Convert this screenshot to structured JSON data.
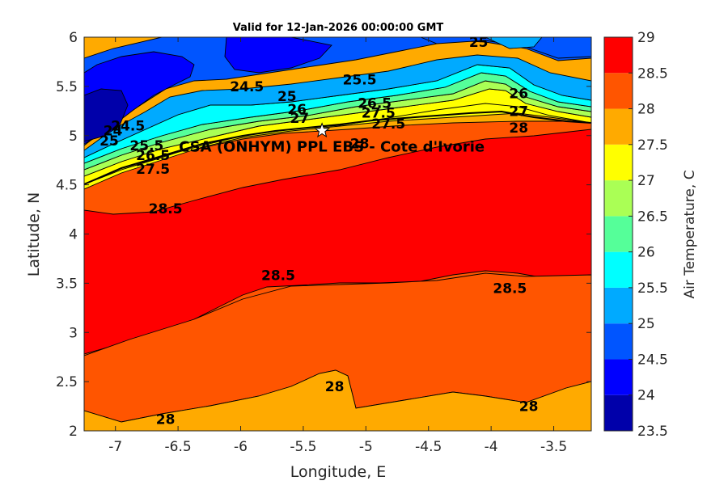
{
  "chart_data": {
    "type": "heatmap",
    "subtype": "filled-contour",
    "title": "Valid for 12-Jan-2026 00:00:00 GMT",
    "xlabel": "Longitude, E",
    "ylabel": "Latitude, N",
    "xlim": [
      -7.25,
      -3.2
    ],
    "ylim": [
      2,
      6
    ],
    "xticks": [
      -7,
      -6.5,
      -6,
      -5.5,
      -5,
      -4.5,
      -4,
      -3.5
    ],
    "xtick_labels": [
      "-7",
      "-6.5",
      "-6",
      "-5.5",
      "-5",
      "-4.5",
      "-4",
      "-3.5"
    ],
    "yticks": [
      2,
      2.5,
      3,
      3.5,
      4,
      4.5,
      5,
      5.5,
      6
    ],
    "ytick_labels": [
      "2",
      "2.5",
      "3",
      "3.5",
      "4",
      "4.5",
      "5",
      "5.5",
      "6"
    ],
    "colorbar": {
      "label": "Air Temperature, C",
      "ticks": [
        23.5,
        24,
        24.5,
        25,
        25.5,
        26,
        26.5,
        27,
        27.5,
        28,
        28.5,
        29
      ],
      "tick_labels": [
        "23.5",
        "24",
        "24.5",
        "25",
        "25.5",
        "26",
        "26.5",
        "27",
        "27.5",
        "28",
        "28.5",
        "29"
      ],
      "colors": [
        "#0000aa",
        "#0000ff",
        "#0055ff",
        "#00aaff",
        "#00ffff",
        "#55ff99",
        "#aaff55",
        "#ffff00",
        "#ffaa00",
        "#ff5500",
        "#ff0000",
        "#aa0000"
      ]
    },
    "contour_labels": [
      {
        "text": "25",
        "lon": -4.1,
        "lat": 5.95
      },
      {
        "text": "25.5",
        "lon": -5.05,
        "lat": 5.57
      },
      {
        "text": "24.5",
        "lon": -5.95,
        "lat": 5.5
      },
      {
        "text": "25",
        "lon": -5.63,
        "lat": 5.4
      },
      {
        "text": "26",
        "lon": -3.78,
        "lat": 5.43
      },
      {
        "text": "26.5",
        "lon": -4.93,
        "lat": 5.33
      },
      {
        "text": "26",
        "lon": -5.55,
        "lat": 5.27
      },
      {
        "text": "27.5",
        "lon": -4.9,
        "lat": 5.23
      },
      {
        "text": "27",
        "lon": -3.78,
        "lat": 5.25
      },
      {
        "text": "27",
        "lon": -5.53,
        "lat": 5.18
      },
      {
        "text": "27.5",
        "lon": -4.82,
        "lat": 5.12
      },
      {
        "text": "28",
        "lon": -3.78,
        "lat": 5.08
      },
      {
        "text": "24",
        "lon": -7.02,
        "lat": 5.05
      },
      {
        "text": "24.5",
        "lon": -6.9,
        "lat": 5.1
      },
      {
        "text": "25",
        "lon": -7.05,
        "lat": 4.95
      },
      {
        "text": "25.5",
        "lon": -6.75,
        "lat": 4.9
      },
      {
        "text": "26.5",
        "lon": -6.7,
        "lat": 4.8
      },
      {
        "text": "27.5",
        "lon": -6.7,
        "lat": 4.66
      },
      {
        "text": "28",
        "lon": -5.05,
        "lat": 4.92
      },
      {
        "text": "28.5",
        "lon": -6.6,
        "lat": 4.26
      },
      {
        "text": "28.5",
        "lon": -5.7,
        "lat": 3.58
      },
      {
        "text": "28.5",
        "lon": -3.85,
        "lat": 3.45
      },
      {
        "text": "28",
        "lon": -5.25,
        "lat": 2.45
      },
      {
        "text": "28",
        "lon": -6.6,
        "lat": 2.12
      },
      {
        "text": "28",
        "lon": -3.7,
        "lat": 2.25
      }
    ],
    "site": {
      "label": "CSA (ONHYM) PPL EBS - Cote d'Ivorie",
      "lon": -5.35,
      "lat": 5.05,
      "marker": "star"
    }
  }
}
